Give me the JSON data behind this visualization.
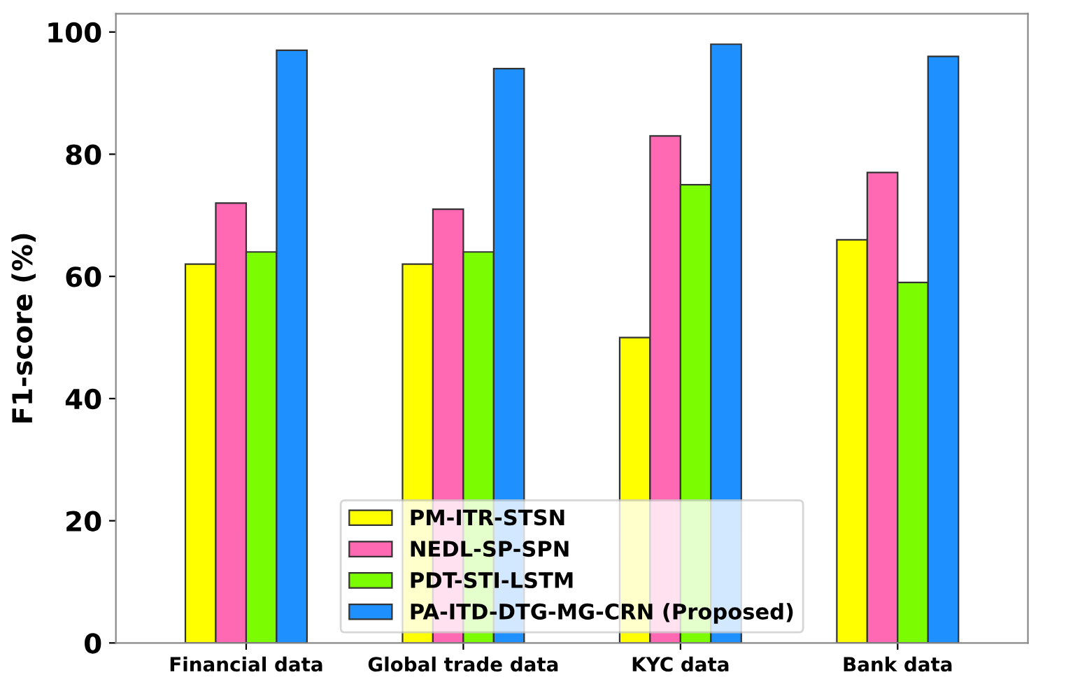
{
  "chart_data": {
    "type": "bar",
    "ylabel": "F1-score (%)",
    "categories": [
      "Financial data",
      "Global trade data",
      "KYC data",
      "Bank data"
    ],
    "series": [
      {
        "name": "PM-ITR-STSN",
        "color": "#ffff00",
        "values": [
          62,
          62,
          50,
          66
        ]
      },
      {
        "name": "NEDL-SP-SPN",
        "color": "#ff69b4",
        "values": [
          72,
          71,
          83,
          77
        ]
      },
      {
        "name": "PDT-STI-LSTM",
        "color": "#7cfc00",
        "values": [
          64,
          64,
          75,
          59
        ]
      },
      {
        "name": "PA-ITD-DTG-MG-CRN (Proposed)",
        "color": "#1e90ff",
        "values": [
          97,
          94,
          98,
          96
        ]
      }
    ],
    "ylim": [
      0,
      103
    ],
    "yticks": [
      0,
      20,
      40,
      60,
      80,
      100
    ],
    "grid": false,
    "legend": "bottom"
  }
}
